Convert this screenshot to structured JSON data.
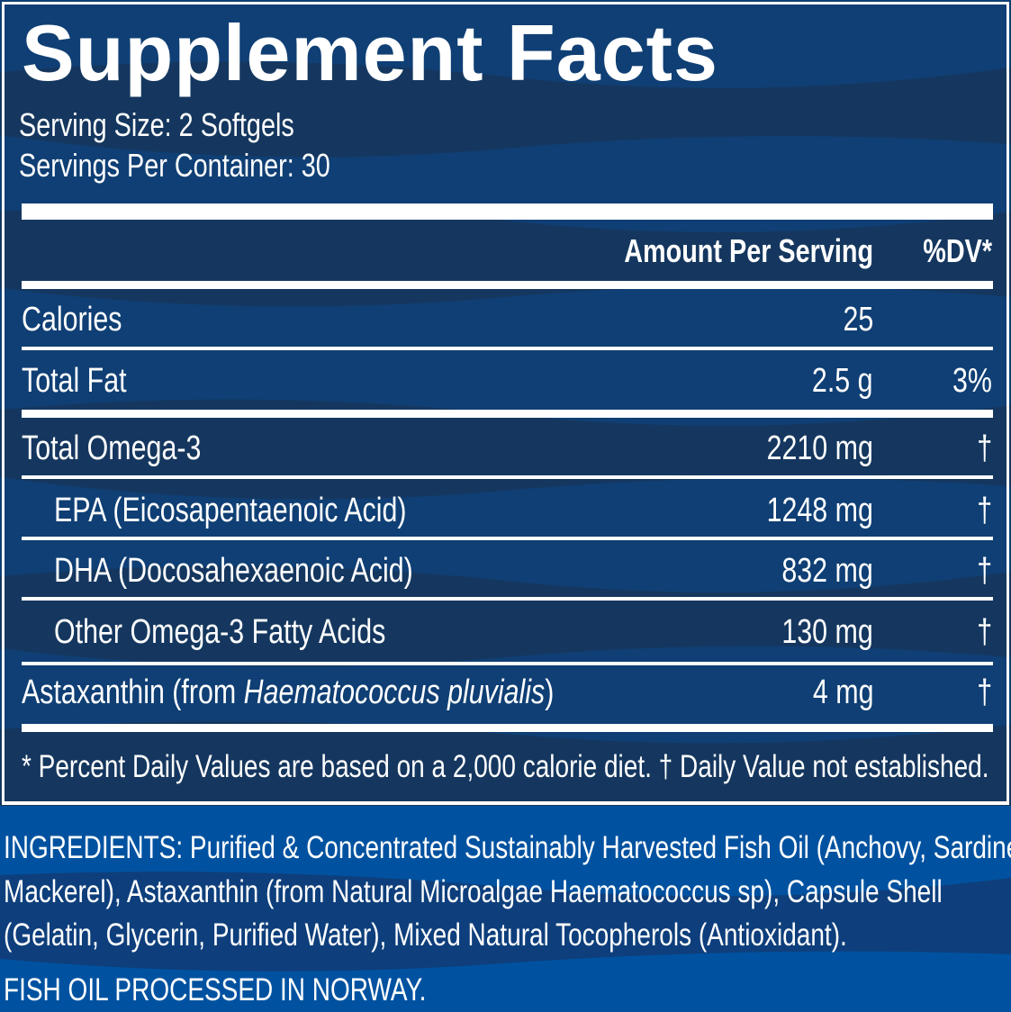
{
  "title": "Supplement Facts",
  "serving_size": "Serving Size: 2 Softgels",
  "servings_per_container": "Servings Per Container: 30",
  "header": {
    "amount": "Amount Per Serving",
    "dv": "%DV*"
  },
  "rows": [
    {
      "name": "Calories",
      "amount": "25",
      "dv": ""
    },
    {
      "name": "Total Fat",
      "amount": "2.5 g",
      "dv": "3%"
    },
    {
      "name": "Total Omega-3",
      "amount": "2210 mg",
      "dv": "†"
    },
    {
      "name": "EPA (Eicosapentaenoic Acid)",
      "amount": "1248 mg",
      "dv": "†"
    },
    {
      "name": "DHA (Docosahexaenoic Acid)",
      "amount": "832 mg",
      "dv": "†"
    },
    {
      "name": "Other Omega-3 Fatty Acids",
      "amount": "130 mg",
      "dv": "†"
    },
    {
      "name_prefix": "Astaxanthin (from ",
      "name_italic": "Haematococcus pluvialis",
      "name_suffix": ")",
      "amount": "4 mg",
      "dv": "†"
    }
  ],
  "footnote": "* Percent Daily Values are based on a 2,000 calorie diet. † Daily Value not established.",
  "ingredients": [
    "INGREDIENTS: Purified & Concentrated Sustainably Harvested Fish Oil (Anchovy, Sardine,",
    "Mackerel), Astaxanthin (from Natural Microalgae Haematococcus sp), Capsule Shell",
    "(Gelatin, Glycerin, Purified Water), Mixed Natural Tocopherols (Antioxidant)."
  ],
  "origin": "FISH OIL PROCESSED IN NORWAY.",
  "colors": {
    "panel": "#0f3f74",
    "wave": "#15375f",
    "bottom": "#0052a0"
  }
}
